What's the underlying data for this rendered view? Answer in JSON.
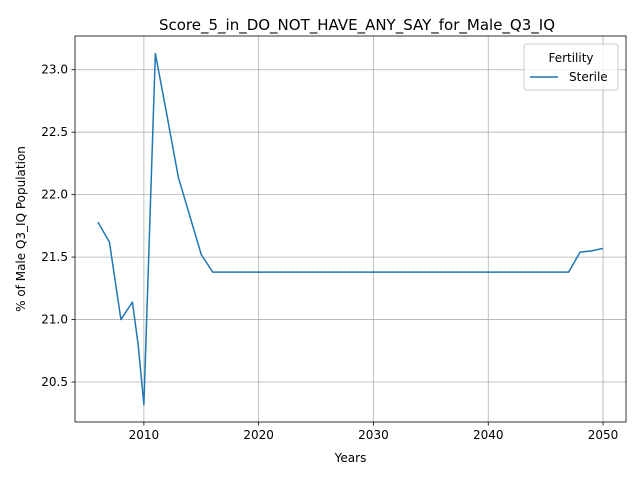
{
  "chart_data": {
    "type": "line",
    "title": "Score_5_in_DO_NOT_HAVE_ANY_SAY_for_Male_Q3_IQ",
    "xlabel": "Years",
    "ylabel": "% of Male Q3_IQ Population",
    "xlim": [
      2004,
      2052
    ],
    "ylim": [
      20.18,
      23.27
    ],
    "grid": true,
    "legend": {
      "title": "Fertility",
      "position": "top-right"
    },
    "x_ticks": [
      2010,
      2020,
      2030,
      2040,
      2050
    ],
    "y_ticks": [
      20.5,
      21.0,
      21.5,
      22.0,
      22.5,
      23.0
    ],
    "x_tick_labels": [
      "2010",
      "2020",
      "2030",
      "2040",
      "2050"
    ],
    "y_tick_labels": [
      "20.5",
      "21.0",
      "21.5",
      "22.0",
      "22.5",
      "23.0"
    ],
    "series": [
      {
        "name": "Sterile",
        "color": "#1f77b4",
        "x": [
          2006,
          2007,
          2008,
          2009,
          2009.5,
          2010,
          2011,
          2012,
          2013,
          2014,
          2015,
          2016,
          2017,
          2018,
          2019,
          2020,
          2021,
          2022,
          2023,
          2024,
          2025,
          2026,
          2027,
          2028,
          2029,
          2030,
          2031,
          2032,
          2033,
          2034,
          2035,
          2036,
          2037,
          2038,
          2039,
          2040,
          2041,
          2042,
          2043,
          2044,
          2045,
          2046,
          2047,
          2048,
          2049,
          2050
        ],
        "y": [
          21.78,
          21.62,
          21.0,
          21.14,
          20.8,
          20.32,
          23.13,
          22.64,
          22.14,
          21.83,
          21.52,
          21.38,
          21.38,
          21.38,
          21.38,
          21.38,
          21.38,
          21.38,
          21.38,
          21.38,
          21.38,
          21.38,
          21.38,
          21.38,
          21.38,
          21.38,
          21.38,
          21.38,
          21.38,
          21.38,
          21.38,
          21.38,
          21.38,
          21.38,
          21.38,
          21.38,
          21.38,
          21.38,
          21.38,
          21.38,
          21.38,
          21.38,
          21.38,
          21.54,
          21.55,
          21.57
        ]
      }
    ]
  }
}
